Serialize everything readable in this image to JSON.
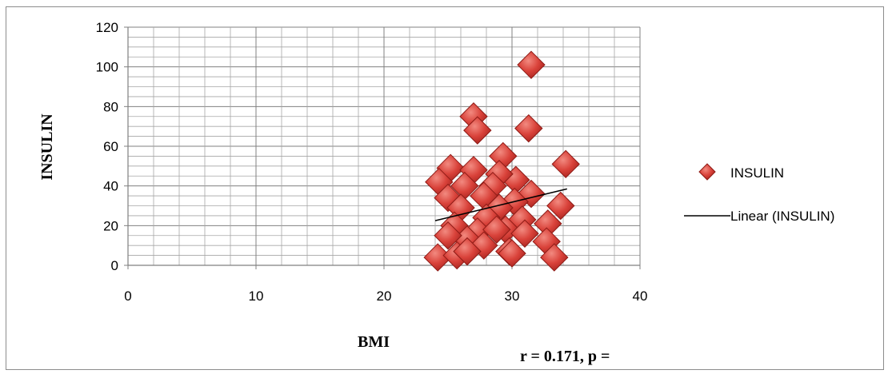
{
  "chart_data": {
    "type": "scatter",
    "title": "",
    "xlabel": "BMI",
    "ylabel": "INSULIN",
    "xlim": [
      0,
      40
    ],
    "ylim": [
      0,
      120
    ],
    "xticks": [
      0,
      10,
      20,
      30,
      40
    ],
    "yticks": [
      0,
      20,
      40,
      60,
      80,
      100,
      120
    ],
    "grid": true,
    "legend_position": "right",
    "series": [
      {
        "name": "INSULIN",
        "marker": "diamond",
        "color": "#c0392b",
        "points": [
          [
            31.5,
            101
          ],
          [
            27,
            75
          ],
          [
            27.3,
            68
          ],
          [
            31.3,
            69
          ],
          [
            34.2,
            51
          ],
          [
            29.3,
            55
          ],
          [
            25.2,
            49
          ],
          [
            27,
            48
          ],
          [
            30.3,
            43
          ],
          [
            29,
            46
          ],
          [
            24.3,
            42
          ],
          [
            26.3,
            40
          ],
          [
            28.5,
            40
          ],
          [
            31.5,
            36
          ],
          [
            25,
            34
          ],
          [
            27.8,
            35
          ],
          [
            30.2,
            32
          ],
          [
            26,
            29
          ],
          [
            29,
            29
          ],
          [
            33.8,
            30
          ],
          [
            28,
            24
          ],
          [
            30.8,
            23
          ],
          [
            32.8,
            21
          ],
          [
            25.5,
            20
          ],
          [
            27.3,
            17
          ],
          [
            29.5,
            18
          ],
          [
            31,
            16
          ],
          [
            28.8,
            18
          ],
          [
            26.5,
            13
          ],
          [
            25,
            15
          ],
          [
            27.8,
            10
          ],
          [
            29.8,
            7
          ],
          [
            32.7,
            12
          ],
          [
            24.2,
            4
          ],
          [
            25.7,
            5
          ],
          [
            26.5,
            7
          ],
          [
            30,
            6
          ],
          [
            33.3,
            4
          ]
        ]
      },
      {
        "name": "Linear (INSULIN)",
        "type": "line",
        "color": "#000000",
        "points": [
          [
            24,
            22.5
          ],
          [
            34.3,
            38.5
          ]
        ]
      }
    ],
    "annotations": [
      "r = 0.171, p ="
    ]
  }
}
